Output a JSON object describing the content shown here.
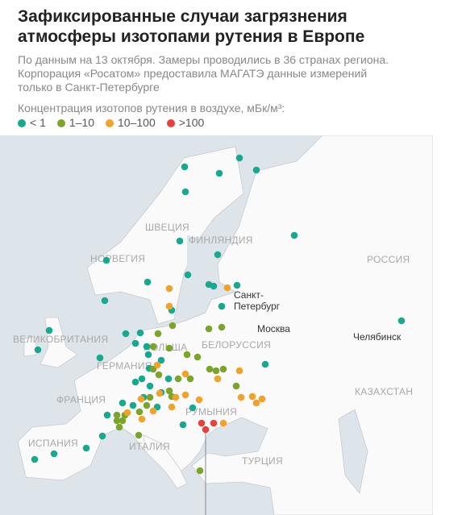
{
  "header": {
    "title": [
      "Зафиксированные случаи загрязнения",
      "атмосферы изотопами рутения в Европе"
    ],
    "subtitle": [
      "По данным на 13 октября. Замеры проводились в 36 странах региона.",
      "Корпорация «Росатом» предоставила МАГАТЭ данные измерений",
      "только в Санкт-Петербурге"
    ]
  },
  "legend": {
    "title": "Концентрация изотопов рутения в воздухе, мБк/м³:",
    "items": [
      {
        "label": "< 1",
        "color": "#17a98f"
      },
      {
        "label": "1–10",
        "color": "#7aa52a"
      },
      {
        "label": "10–100",
        "color": "#f0a22a"
      },
      {
        "label": ">100",
        "color": "#e8403a"
      }
    ]
  },
  "map": {
    "countries": [
      "ШВЕЦИЯ",
      "ФИНЛЯНДИЯ",
      "НОРВЕГИЯ",
      "РОССИЯ",
      "ВЕЛИКОБРИТАНИЯ",
      "ПОЛЬША",
      "БЕЛОРУССИЯ",
      "ГЕРМАНИЯ",
      "ФРАНЦИЯ",
      "РУМЫНИЯ",
      "ИСПАНИЯ",
      "ИТАЛИЯ",
      "ТУРЦИЯ",
      "КАЗАХСТАН"
    ],
    "cities": [
      [
        "Санкт-",
        "Петербург"
      ],
      [
        "Москва"
      ],
      [
        "Челябинск"
      ]
    ]
  }
}
